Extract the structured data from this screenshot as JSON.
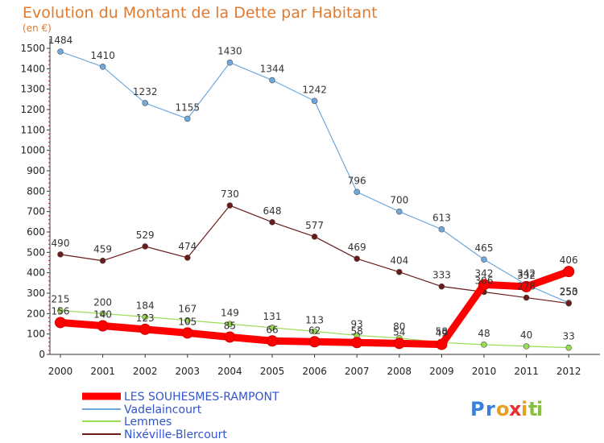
{
  "chart_data": {
    "type": "line",
    "title": "Evolution du Montant de la Dette par Habitant",
    "subtitle": "(en €)",
    "x": [
      "2000",
      "2001",
      "2002",
      "2003",
      "2004",
      "2005",
      "2006",
      "2007",
      "2008",
      "2009",
      "2010",
      "2011",
      "2012"
    ],
    "ylim": [
      0,
      1500
    ],
    "yticks": [
      0,
      100,
      200,
      300,
      400,
      500,
      600,
      700,
      800,
      900,
      1000,
      1100,
      1200,
      1300,
      1400,
      1500
    ],
    "grid": false,
    "legend_position": "bottom-left",
    "series": [
      {
        "name": "LES SOUHESMES-RAMPONT",
        "color": "#ff0000",
        "values": [
          156,
          140,
          123,
          105,
          85,
          66,
          62,
          58,
          54,
          49,
          342,
          332,
          406
        ],
        "labels": [
          "156",
          "140",
          "123",
          "105",
          "85",
          "66",
          "62",
          "58",
          "54",
          "49",
          "342",
          "332",
          "406"
        ]
      },
      {
        "name": "Vadelaincourt",
        "color": "#6fa8dc",
        "values": [
          1484,
          1410,
          1232,
          1155,
          1430,
          1344,
          1242,
          796,
          700,
          613,
          465,
          342,
          253
        ],
        "labels": [
          "1484",
          "1410",
          "1232",
          "1155",
          "1430",
          "1344",
          "1242",
          "796",
          "700",
          "613",
          "465",
          "342",
          "253"
        ]
      },
      {
        "name": "Lemmes",
        "color": "#99dd55",
        "values": [
          215,
          200,
          184,
          167,
          149,
          131,
          113,
          93,
          80,
          58,
          48,
          40,
          33
        ],
        "labels": [
          "215",
          "200",
          "184",
          "167",
          "149",
          "131",
          "113",
          "93",
          "80",
          "58",
          "48",
          "40",
          "33"
        ]
      },
      {
        "name": "Nixéville-Blercourt",
        "color": "#6b1a1a",
        "values": [
          490,
          459,
          529,
          474,
          730,
          648,
          577,
          469,
          404,
          333,
          306,
          278,
          250
        ],
        "labels": [
          "490",
          "459",
          "529",
          "474",
          "730",
          "648",
          "577",
          "469",
          "404",
          "333",
          "306",
          "278",
          "250"
        ]
      }
    ]
  },
  "branding": {
    "logo_text": "Proxiti",
    "logo_letters": [
      "P",
      "r",
      "o",
      "x",
      "i",
      "t",
      "i"
    ],
    "logo_colors": [
      "#3a7fd8",
      "#3a7fd8",
      "#e8a020",
      "#e83030",
      "#e8a020",
      "#88c040",
      "#88c040"
    ]
  }
}
